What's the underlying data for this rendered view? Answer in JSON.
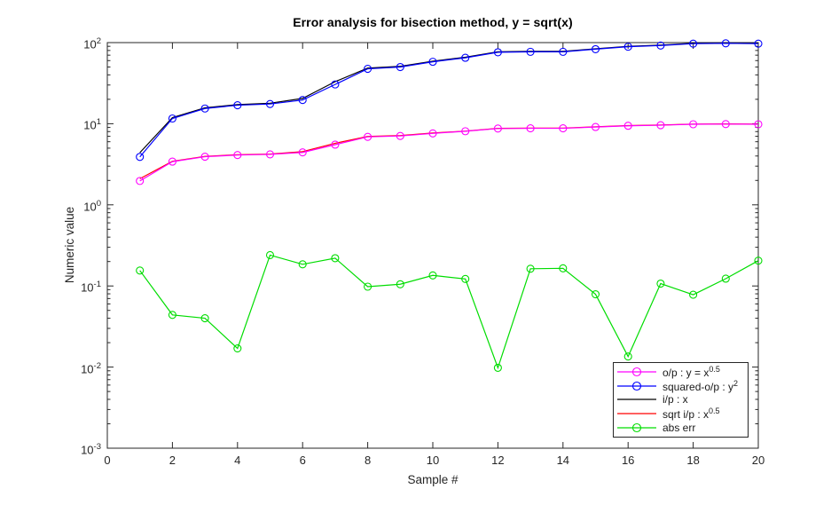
{
  "window": {
    "background": "#ffffff",
    "axis_color": "#262626",
    "title_color": "#000000"
  },
  "chart_data": {
    "type": "line",
    "title": "Error analysis for bisection method, y = sqrt(x)",
    "xlabel": "Sample #",
    "ylabel": "Numeric value",
    "yscale": "log",
    "grid": false,
    "legend_position": "lower-right-inside",
    "xlim": [
      0,
      20
    ],
    "ylim": [
      0.001,
      100
    ],
    "x_ticks": [
      0,
      2,
      4,
      6,
      8,
      10,
      12,
      14,
      16,
      18,
      20
    ],
    "y_tick_exponents": [
      2,
      1,
      0,
      -1,
      -2,
      -3
    ],
    "x": [
      1,
      2,
      3,
      4,
      5,
      6,
      7,
      8,
      9,
      10,
      11,
      12,
      13,
      14,
      15,
      16,
      17,
      18,
      19,
      20
    ],
    "series": [
      {
        "name": "output",
        "legend_pre": "o/p : y = x",
        "legend_sup": "0.5",
        "color": "#ff00ff",
        "marker": "circle",
        "zorder": 4,
        "values": [
          1.97,
          3.41,
          3.92,
          4.11,
          4.19,
          4.43,
          5.52,
          6.89,
          7.07,
          7.6,
          8.08,
          8.72,
          8.78,
          8.78,
          9.11,
          9.43,
          9.59,
          9.85,
          9.9,
          9.85
        ]
      },
      {
        "name": "squared-output",
        "legend_pre": "squared-o/p : y",
        "legend_sup": "2",
        "color": "#0000ff",
        "marker": "circle",
        "zorder": 3,
        "values": [
          3.9,
          11.6,
          15.4,
          16.9,
          17.5,
          19.6,
          30.5,
          47.5,
          50,
          58,
          65,
          76,
          77,
          77,
          83,
          89,
          92,
          97,
          98,
          97
        ]
      },
      {
        "name": "input",
        "legend_pre": "i/p : x",
        "legend_sup": "",
        "color": "#000000",
        "marker": "none",
        "zorder": 1,
        "values": [
          4.4,
          11.9,
          15.7,
          17.2,
          17.9,
          20.5,
          33,
          48.5,
          51,
          59,
          66,
          77,
          78,
          78,
          84,
          90,
          93,
          98,
          99,
          98
        ]
      },
      {
        "name": "sqrt-input",
        "legend_pre": "sqrt i/p : x",
        "legend_sup": "0.5",
        "color": "#ff0000",
        "marker": "none",
        "zorder": 2,
        "values": [
          2.1,
          3.45,
          3.96,
          4.15,
          4.23,
          4.53,
          5.74,
          6.96,
          7.14,
          7.68,
          8.12,
          8.77,
          8.83,
          8.83,
          9.17,
          9.49,
          9.64,
          9.9,
          9.95,
          9.9
        ]
      },
      {
        "name": "abs-error",
        "legend_pre": "abs err",
        "legend_sup": "",
        "color": "#00dd00",
        "marker": "circle",
        "zorder": 5,
        "values": [
          0.155,
          0.044,
          0.04,
          0.017,
          0.24,
          0.185,
          0.22,
          0.098,
          0.105,
          0.135,
          0.122,
          0.0098,
          0.163,
          0.165,
          0.079,
          0.0135,
          0.107,
          0.078,
          0.123,
          0.205
        ]
      }
    ]
  }
}
